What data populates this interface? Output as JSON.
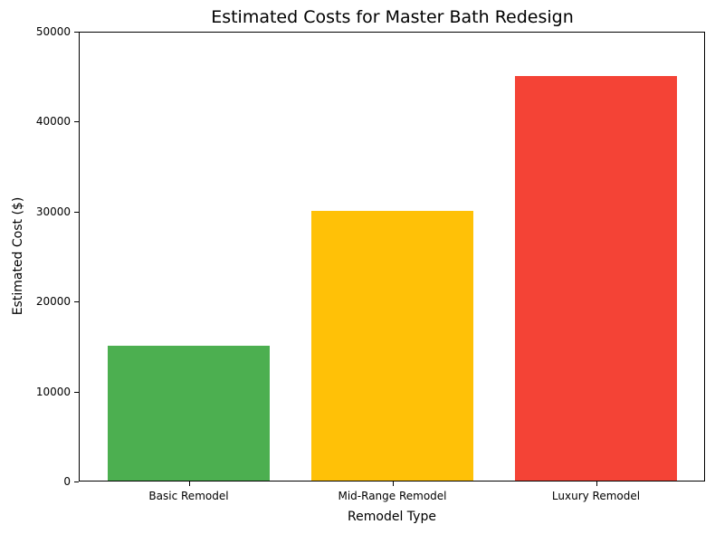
{
  "chart_data": {
    "type": "bar",
    "title": "Estimated Costs for Master Bath Redesign",
    "xlabel": "Remodel Type",
    "ylabel": "Estimated Cost ($)",
    "categories": [
      "Basic Remodel",
      "Mid-Range Remodel",
      "Luxury Remodel"
    ],
    "values": [
      15000,
      30000,
      45000
    ],
    "colors": [
      "#4CAF50",
      "#FFC107",
      "#F44336"
    ],
    "ylim": [
      0,
      50000
    ],
    "yticks": [
      "0",
      "10000",
      "20000",
      "30000",
      "40000",
      "50000"
    ],
    "grid": false,
    "legend": null
  }
}
